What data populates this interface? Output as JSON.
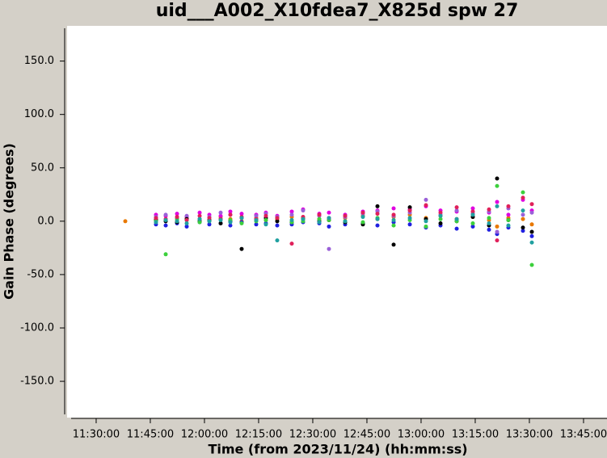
{
  "chart_data": {
    "type": "scatter",
    "title": "uid___A002_X10fdea7_X825d spw 27",
    "x_label": "Time (from 2023/11/24) (hh:mm:ss)",
    "y_label": "Gain Phase (degrees)",
    "x": [
      41884,
      42394,
      42556,
      42744,
      42905,
      43120,
      43281,
      43469,
      43630,
      43818,
      44060,
      44221,
      44409,
      44651,
      44839,
      45108,
      45269,
      45538,
      45833,
      46075,
      46344,
      46613,
      46881,
      47123,
      47392,
      47660,
      47929,
      48063,
      48251,
      48493,
      48641
    ],
    "series": [
      {
        "color": "#e87800",
        "values": [
          0,
          2,
          1,
          0,
          3,
          2,
          1,
          4,
          2,
          0,
          3,
          1,
          2,
          4,
          3,
          2,
          1,
          3,
          5,
          2,
          4,
          6,
          3,
          5,
          2,
          4,
          1,
          -5,
          3,
          2,
          -3
        ]
      },
      {
        "color": "#e000e0",
        "values": [
          null,
          6,
          5,
          7,
          4,
          8,
          6,
          5,
          9,
          7,
          6,
          8,
          5,
          9,
          11,
          7,
          8,
          6,
          9,
          10,
          12,
          11,
          14,
          10,
          9,
          12,
          8,
          18,
          6,
          20,
          10
        ]
      },
      {
        "color": "#2020e0",
        "values": [
          null,
          -3,
          -4,
          -2,
          -5,
          -1,
          -3,
          -2,
          -4,
          -1,
          -3,
          -2,
          -4,
          -3,
          -1,
          -2,
          -5,
          -3,
          -2,
          -4,
          -1,
          -3,
          -6,
          -4,
          -7,
          -5,
          -8,
          -12,
          -6,
          -9,
          -14
        ]
      },
      {
        "color": "#9a60d8",
        "values": [
          null,
          4,
          6,
          3,
          5,
          2,
          4,
          8,
          6,
          3,
          5,
          7,
          4,
          6,
          10,
          5,
          -26,
          4,
          7,
          9,
          5,
          8,
          20,
          6,
          10,
          7,
          9,
          -10,
          12,
          6,
          8
        ]
      },
      {
        "color": "#000000",
        "values": [
          null,
          1,
          0,
          -1,
          2,
          0,
          1,
          -2,
          0,
          -26,
          1,
          3,
          0,
          -1,
          2,
          0,
          1,
          -1,
          -3,
          14,
          -22,
          13,
          2,
          -2,
          0,
          4,
          -4,
          40,
          1,
          -6,
          -10
        ]
      },
      {
        "color": "#3cd03c",
        "values": [
          null,
          0,
          -31,
          2,
          1,
          -1,
          0,
          2,
          1,
          -2,
          0,
          1,
          3,
          -1,
          0,
          2,
          1,
          0,
          -1,
          3,
          -4,
          1,
          -5,
          2,
          0,
          -2,
          3,
          33,
          1,
          27,
          -41
        ]
      },
      {
        "color": "#e0205a",
        "values": [
          null,
          3,
          2,
          4,
          1,
          5,
          3,
          2,
          6,
          4,
          2,
          5,
          3,
          -21,
          4,
          6,
          3,
          5,
          8,
          7,
          6,
          10,
          15,
          8,
          13,
          9,
          11,
          -18,
          14,
          22,
          16
        ]
      },
      {
        "color": "#20a0a0",
        "values": [
          null,
          -1,
          1,
          0,
          -2,
          2,
          0,
          1,
          -1,
          3,
          1,
          -3,
          -18,
          1,
          2,
          -1,
          3,
          0,
          4,
          2,
          1,
          3,
          0,
          5,
          2,
          6,
          -2,
          14,
          -4,
          10,
          -20
        ]
      }
    ],
    "xlim": [
      40984,
      49890
    ],
    "xticks": [
      {
        "value": 41400,
        "label": "11:30:00"
      },
      {
        "value": 42300,
        "label": "11:45:00"
      },
      {
        "value": 43200,
        "label": "12:00:00"
      },
      {
        "value": 44100,
        "label": "12:15:00"
      },
      {
        "value": 45000,
        "label": "12:30:00"
      },
      {
        "value": 45900,
        "label": "12:45:00"
      },
      {
        "value": 46800,
        "label": "13:00:00"
      },
      {
        "value": 47700,
        "label": "13:15:00"
      },
      {
        "value": 48600,
        "label": "13:30:00"
      },
      {
        "value": 49500,
        "label": "13:45:00"
      }
    ],
    "ylim": [
      -184,
      183
    ],
    "yticks": [
      {
        "value": 150,
        "label": "150.0"
      },
      {
        "value": 100,
        "label": "100.0"
      },
      {
        "value": 50,
        "label": "50.0"
      },
      {
        "value": 0,
        "label": "0.0"
      },
      {
        "value": -50,
        "label": "-50.0"
      },
      {
        "value": -100,
        "label": "-100.0"
      },
      {
        "value": -150,
        "label": "-150.0"
      }
    ],
    "grid": false
  }
}
